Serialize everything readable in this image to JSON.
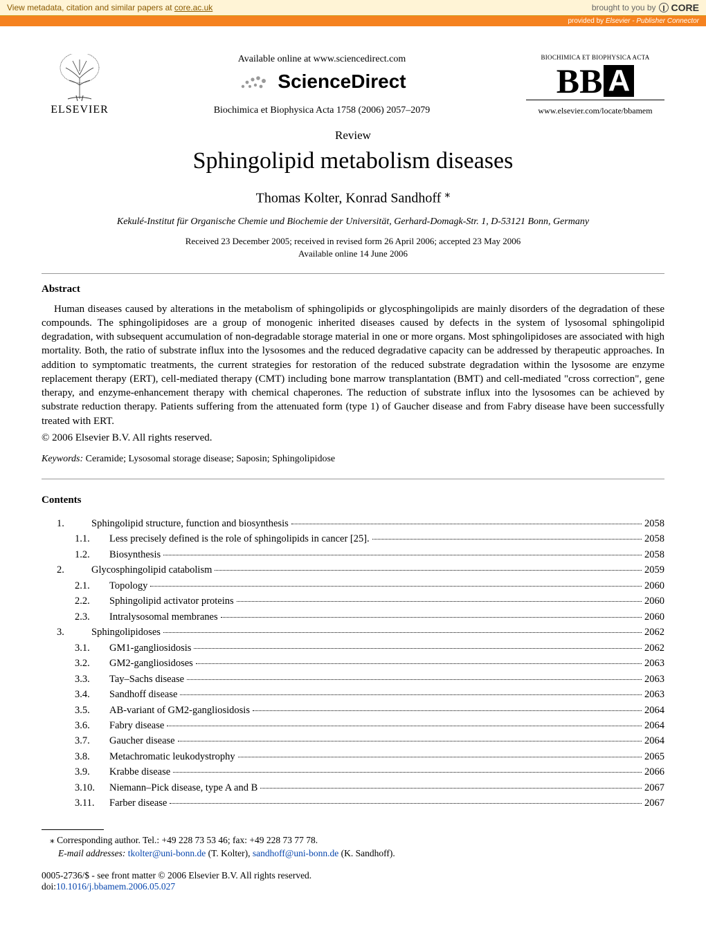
{
  "core": {
    "left_text": "View metadata, citation and similar papers at ",
    "link_text": "core.ac.uk",
    "right_text": "brought to you by",
    "logo": "CORE",
    "provided_prefix": "provided by ",
    "provided_by": "Elsevier - Publisher Connector"
  },
  "header": {
    "elsevier": "ELSEVIER",
    "available": "Available online at www.sciencedirect.com",
    "sd": "ScienceDirect",
    "journal": "Biochimica et Biophysica Acta 1758 (2006) 2057–2079",
    "bba_top": "BIOCHIMICA ET BIOPHYSICA ACTA",
    "bba_b": "BB",
    "bba_a": "A",
    "bba_url": "www.elsevier.com/locate/bbamem"
  },
  "paper": {
    "review": "Review",
    "title": "Sphingolipid metabolism diseases",
    "authors": "Thomas Kolter, Konrad Sandhoff ",
    "affiliation": "Kekulé-Institut für Organische Chemie und Biochemie der Universität, Gerhard-Domagk-Str. 1, D-53121 Bonn, Germany",
    "date1": "Received 23 December 2005; received in revised form 26 April 2006; accepted 23 May 2006",
    "date2": "Available online 14 June 2006"
  },
  "abstract": {
    "head": "Abstract",
    "text": "Human diseases caused by alterations in the metabolism of sphingolipids or glycosphingolipids are mainly disorders of the degradation of these compounds. The sphingolipidoses are a group of monogenic inherited diseases caused by defects in the system of lysosomal sphingolipid degradation, with subsequent accumulation of non-degradable storage material in one or more organs. Most sphingolipidoses are associated with high mortality. Both, the ratio of substrate influx into the lysosomes and the reduced degradative capacity can be addressed by therapeutic approaches. In addition to symptomatic treatments, the current strategies for restoration of the reduced substrate degradation within the lysosome are enzyme replacement therapy (ERT), cell-mediated therapy (CMT) including bone marrow transplantation (BMT) and cell-mediated \"cross correction\", gene therapy, and enzyme-enhancement therapy with chemical chaperones. The reduction of substrate influx into the lysosomes can be achieved by substrate reduction therapy. Patients suffering from the attenuated form (type 1) of Gaucher disease and from Fabry disease have been successfully treated with ERT.",
    "copyright": "© 2006 Elsevier B.V. All rights reserved."
  },
  "keywords": {
    "label": "Keywords:",
    "text": " Ceramide; Lysosomal storage disease; Saposin; Sphingolipidose"
  },
  "contents": {
    "head": "Contents",
    "items": [
      {
        "num": "1.",
        "label": "Sphingolipid structure, function and biosynthesis",
        "page": "2058",
        "sub": false
      },
      {
        "num": "1.1.",
        "label": "Less precisely defined is the role of sphingolipids in cancer [25].",
        "page": "2058",
        "sub": true
      },
      {
        "num": "1.2.",
        "label": "Biosynthesis",
        "page": "2058",
        "sub": true
      },
      {
        "num": "2.",
        "label": "Glycosphingolipid catabolism",
        "page": "2059",
        "sub": false
      },
      {
        "num": "2.1.",
        "label": "Topology",
        "page": "2060",
        "sub": true
      },
      {
        "num": "2.2.",
        "label": "Sphingolipid activator proteins",
        "page": "2060",
        "sub": true
      },
      {
        "num": "2.3.",
        "label": "Intralysosomal membranes",
        "page": "2060",
        "sub": true
      },
      {
        "num": "3.",
        "label": "Sphingolipidoses",
        "page": "2062",
        "sub": false
      },
      {
        "num": "3.1.",
        "label": "GM1-gangliosidosis",
        "page": "2062",
        "sub": true
      },
      {
        "num": "3.2.",
        "label": "GM2-gangliosidoses",
        "page": "2063",
        "sub": true
      },
      {
        "num": "3.3.",
        "label": "Tay–Sachs disease",
        "page": "2063",
        "sub": true
      },
      {
        "num": "3.4.",
        "label": "Sandhoff disease",
        "page": "2063",
        "sub": true
      },
      {
        "num": "3.5.",
        "label": "AB-variant of GM2-gangliosidosis",
        "page": "2064",
        "sub": true
      },
      {
        "num": "3.6.",
        "label": "Fabry disease",
        "page": "2064",
        "sub": true
      },
      {
        "num": "3.7.",
        "label": "Gaucher disease",
        "page": "2064",
        "sub": true
      },
      {
        "num": "3.8.",
        "label": "Metachromatic leukodystrophy",
        "page": "2065",
        "sub": true
      },
      {
        "num": "3.9.",
        "label": "Krabbe disease",
        "page": "2066",
        "sub": true
      },
      {
        "num": "3.10.",
        "label": "Niemann–Pick disease, type A and B",
        "page": "2067",
        "sub": true
      },
      {
        "num": "3.11.",
        "label": "Farber disease",
        "page": "2067",
        "sub": true
      }
    ]
  },
  "footnote": {
    "line1_star": "⁎",
    "line1": " Corresponding author. Tel.: +49 228 73 53 46; fax: +49 228 73 77 78.",
    "email_label": "E-mail addresses:",
    "email1": "tkolter@uni-bonn.de",
    "email1_suffix": " (T. Kolter), ",
    "email2": "sandhoff@uni-bonn.de",
    "email2_suffix": " (K. Sandhoff)."
  },
  "bottom": {
    "issn": "0005-2736/$ - see front matter © 2006 Elsevier B.V. All rights reserved.",
    "doi_prefix": "doi:",
    "doi": "10.1016/j.bbamem.2006.05.027"
  },
  "colors": {
    "banner_bg": "#fff4d6",
    "orange": "#f58220",
    "link": "#0645ad"
  }
}
